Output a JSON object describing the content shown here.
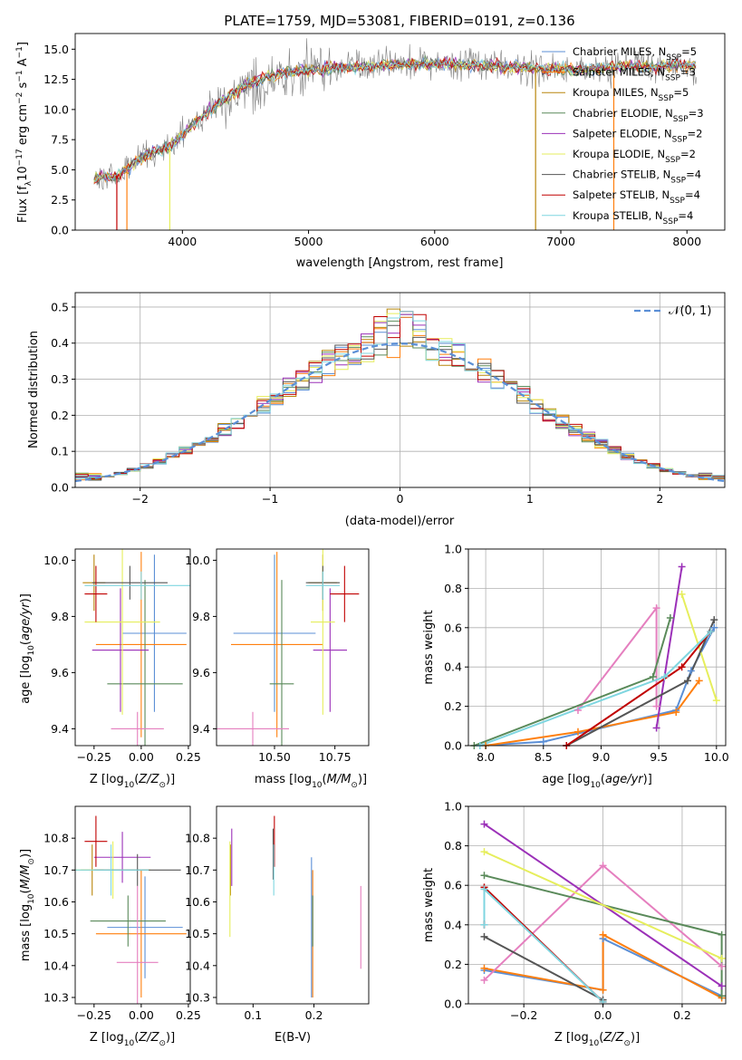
{
  "title": "PLATE=1759, MJD=53081, FIBERID=0191, z=0.136",
  "series_colors": [
    "#5b8fd6",
    "#ff7f0e",
    "#b8860b",
    "#5a8a5a",
    "#9b30b8",
    "#e6ee5c",
    "#555555",
    "#c00000",
    "#7fd6e0"
  ],
  "legend": [
    "Chabrier MILES, N_SSP=5",
    "Salpeter MILES, N_SSP=3",
    "Kroupa MILES, N_SSP=5",
    "Chabrier ELODIE, N_SSP=3",
    "Salpeter ELODIE, N_SSP=2",
    "Kroupa ELODIE, N_SSP=2",
    "Chabrier STELIB, N_SSP=4",
    "Salpeter STELIB, N_SSP=4",
    "Kroupa STELIB, N_SSP=4"
  ],
  "chart_data": [
    {
      "id": "spectrum",
      "type": "line",
      "xlabel": "wavelength [Angstrom, rest frame]",
      "ylabel": "Flux [f_λ 10^-17 erg cm^-2 s^-1 A^-1]",
      "xlim": [
        3150,
        8300
      ],
      "ylim": [
        0,
        16.3
      ],
      "xticks": [
        4000,
        5000,
        6000,
        7000,
        8000
      ],
      "yticks": [
        "0.0",
        "2.5",
        "5.0",
        "7.5",
        "10.0",
        "12.5",
        "15.0"
      ],
      "grid": false,
      "legend_loc": "right",
      "model_x": [
        3300,
        3500,
        3700,
        3900,
        4000,
        4100,
        4300,
        4500,
        4700,
        4900,
        5100,
        5300,
        5500,
        5700,
        5900,
        6100,
        6300,
        6500,
        6700,
        6900,
        7100,
        7300,
        7500,
        7700,
        7900,
        8050
      ],
      "model_y": [
        4.3,
        4.6,
        6.2,
        6.9,
        7.9,
        8.9,
        10.6,
        12.0,
        12.8,
        13.2,
        13.3,
        13.5,
        13.6,
        13.7,
        13.8,
        13.8,
        13.7,
        13.6,
        13.5,
        13.4,
        13.3,
        13.4,
        13.6,
        13.5,
        13.7,
        13.6
      ]
    },
    {
      "id": "residuals",
      "type": "histogram",
      "xlabel": "(data-model)/error",
      "ylabel": "Normed distribution",
      "xlim": [
        -2.5,
        2.5
      ],
      "ylim": [
        0,
        0.54
      ],
      "xticks": [
        "−2",
        "−1",
        "0",
        "1",
        "2"
      ],
      "yticks": [
        "0.0",
        "0.1",
        "0.2",
        "0.3",
        "0.4",
        "0.5"
      ],
      "grid": true,
      "legend_loc": "top-right",
      "gauss_label": "𝒩(0, 1)"
    },
    {
      "id": "age_vs_Z",
      "type": "scatter-errorbars",
      "xlabel": "Z [log10(Z/Z⊙)]",
      "ylabel": "age  [log10(age/yr)]",
      "xlim": [
        -0.35,
        0.26
      ],
      "ylim": [
        9.34,
        10.04
      ],
      "xticks": [
        "−0.25",
        "0.00",
        "0.25"
      ],
      "yticks": [
        "9.4",
        "9.6",
        "9.8",
        "10.0"
      ],
      "points": [
        {
          "x": 0.07,
          "y": 9.74,
          "xerr": 0.17,
          "yerr": 0.28
        },
        {
          "x": 0.0,
          "y": 9.7,
          "xerr": 0.24,
          "yerr": 0.33
        },
        {
          "x": -0.25,
          "y": 9.92,
          "xerr": 0.06,
          "yerr": 0.1
        },
        {
          "x": 0.02,
          "y": 9.56,
          "xerr": 0.2,
          "yerr": 0.37
        },
        {
          "x": -0.11,
          "y": 9.68,
          "xerr": 0.15,
          "yerr": 0.22
        },
        {
          "x": -0.1,
          "y": 9.78,
          "xerr": 0.2,
          "yerr": 0.33
        },
        {
          "x": -0.06,
          "y": 9.92,
          "xerr": 0.2,
          "yerr": 0.06
        },
        {
          "x": -0.24,
          "y": 9.88,
          "xerr": 0.06,
          "yerr": 0.1
        },
        {
          "x": 0.0,
          "y": 9.91,
          "xerr": 0.3,
          "yerr": 0.05
        },
        {
          "x": -0.02,
          "y": 9.4,
          "xerr": 0.14,
          "yerr": 0.06
        }
      ]
    },
    {
      "id": "age_vs_mass",
      "type": "scatter-errorbars",
      "xlabel": "mass [log10(M/M⊙)]",
      "ylabel": "",
      "xlim": [
        10.26,
        10.89
      ],
      "ylim": [
        9.34,
        10.04
      ],
      "xticks": [
        "10.50",
        "10.75"
      ],
      "yticks": [
        "9.4",
        "9.6",
        "9.8",
        "10.0"
      ],
      "points": [
        {
          "x": 10.5,
          "y": 9.74,
          "xerr": 0.17,
          "yerr": 0.28
        },
        {
          "x": 10.51,
          "y": 9.7,
          "xerr": 0.19,
          "yerr": 0.33
        },
        {
          "x": 10.7,
          "y": 9.92,
          "xerr": 0.06,
          "yerr": 0.1
        },
        {
          "x": 10.53,
          "y": 9.56,
          "xerr": 0.05,
          "yerr": 0.37
        },
        {
          "x": 10.73,
          "y": 9.68,
          "xerr": 0.07,
          "yerr": 0.22
        },
        {
          "x": 10.7,
          "y": 9.78,
          "xerr": 0.05,
          "yerr": 0.33
        },
        {
          "x": 10.7,
          "y": 9.92,
          "xerr": 0.07,
          "yerr": 0.06
        },
        {
          "x": 10.79,
          "y": 9.88,
          "xerr": 0.06,
          "yerr": 0.1
        },
        {
          "x": 10.7,
          "y": 9.91,
          "xerr": 0.07,
          "yerr": 0.05
        },
        {
          "x": 10.41,
          "y": 9.4,
          "xerr": 0.15,
          "yerr": 0.06
        }
      ]
    },
    {
      "id": "weight_vs_age",
      "type": "line",
      "xlabel": "age  [log10(age/yr)]",
      "ylabel": "mass weight",
      "xlim": [
        7.85,
        10.08
      ],
      "ylim": [
        0,
        1
      ],
      "xticks": [
        "8.0",
        "8.5",
        "9.0",
        "9.5",
        "10.0"
      ],
      "yticks": [
        "0.0",
        "0.2",
        "0.4",
        "0.6",
        "0.8",
        "1.0"
      ],
      "grid": true,
      "series": [
        {
          "x": [
            7.95,
            8.5,
            9.65,
            9.78,
            9.98
          ],
          "y": [
            0.0,
            0.02,
            0.18,
            0.38,
            0.6
          ]
        },
        {
          "x": [
            8.0,
            8.8,
            9.65,
            9.85
          ],
          "y": [
            0.0,
            0.07,
            0.17,
            0.33
          ]
        },
        {
          "x": [
            8.8,
            9.48,
            9.48
          ],
          "y": [
            0.18,
            0.7,
            0.2
          ]
        },
        {
          "x": [
            7.9,
            9.45,
            9.6
          ],
          "y": [
            0.0,
            0.35,
            0.65
          ]
        },
        {
          "x": [
            9.48,
            9.7
          ],
          "y": [
            0.09,
            0.91
          ]
        },
        {
          "x": [
            9.7,
            10.0
          ],
          "y": [
            0.77,
            0.23
          ]
        },
        {
          "x": [
            8.7,
            9.75,
            9.98
          ],
          "y": [
            0.0,
            0.33,
            0.64
          ]
        },
        {
          "x": [
            8.7,
            9.7,
            9.95
          ],
          "y": [
            0.0,
            0.4,
            0.58
          ]
        },
        {
          "x": [
            7.95,
            9.55,
            9.95
          ],
          "y": [
            0.0,
            0.35,
            0.58
          ]
        }
      ]
    },
    {
      "id": "mass_vs_Z",
      "type": "scatter-errorbars",
      "xlabel": "Z [log10(Z/Z⊙)]",
      "ylabel": "mass [log10(M/M⊙)]",
      "xlim": [
        -0.35,
        0.26
      ],
      "ylim": [
        10.28,
        10.9
      ],
      "xticks": [
        "−0.25",
        "0.00",
        "0.25"
      ],
      "yticks": [
        "10.3",
        "10.4",
        "10.5",
        "10.6",
        "10.7",
        "10.8"
      ],
      "points": [
        {
          "x": 0.02,
          "y": 10.52,
          "xerr": 0.2,
          "yerr": 0.16
        },
        {
          "x": 0.0,
          "y": 10.5,
          "xerr": 0.24,
          "yerr": 0.2
        },
        {
          "x": -0.26,
          "y": 10.7,
          "xerr": 0.06,
          "yerr": 0.08
        },
        {
          "x": -0.07,
          "y": 10.54,
          "xerr": 0.2,
          "yerr": 0.08
        },
        {
          "x": -0.1,
          "y": 10.74,
          "xerr": 0.15,
          "yerr": 0.08
        },
        {
          "x": -0.15,
          "y": 10.7,
          "xerr": 0.2,
          "yerr": 0.09
        },
        {
          "x": -0.02,
          "y": 10.7,
          "xerr": 0.23,
          "yerr": 0.05
        },
        {
          "x": -0.24,
          "y": 10.79,
          "xerr": 0.06,
          "yerr": 0.08
        },
        {
          "x": -0.16,
          "y": 10.7,
          "xerr": 0.2,
          "yerr": 0.08
        },
        {
          "x": -0.02,
          "y": 10.41,
          "xerr": 0.11,
          "yerr": 0.24
        }
      ]
    },
    {
      "id": "mass_vs_ebv",
      "type": "scatter-errorbars",
      "xlabel": "E(B-V)",
      "ylabel": "",
      "xlim": [
        0.04,
        0.29
      ],
      "ylim": [
        10.28,
        10.9
      ],
      "xticks": [
        "0.1",
        "0.2"
      ],
      "yticks": [
        "10.3",
        "10.4",
        "10.5",
        "10.6",
        "10.7",
        "10.8"
      ],
      "points": [
        {
          "x": 0.196,
          "y": 10.52,
          "yerr": 0.22
        },
        {
          "x": 0.198,
          "y": 10.5,
          "yerr": 0.2
        },
        {
          "x": 0.063,
          "y": 10.7,
          "yerr": 0.08
        },
        {
          "x": 0.198,
          "y": 10.54,
          "yerr": 0.08
        },
        {
          "x": 0.065,
          "y": 10.74,
          "yerr": 0.09
        },
        {
          "x": 0.062,
          "y": 10.64,
          "yerr": 0.15
        },
        {
          "x": 0.133,
          "y": 10.75,
          "yerr": 0.08
        },
        {
          "x": 0.135,
          "y": 10.79,
          "yerr": 0.08
        },
        {
          "x": 0.134,
          "y": 10.7,
          "yerr": 0.08
        },
        {
          "x": 0.277,
          "y": 10.52,
          "yerr": 0.13
        }
      ]
    },
    {
      "id": "weight_vs_Z",
      "type": "line",
      "xlabel": "Z [log10(Z/Z⊙)]",
      "ylabel": "mass weight",
      "xlim": [
        -0.34,
        0.31
      ],
      "ylim": [
        0,
        1
      ],
      "xticks": [
        "−0.2",
        "0.0",
        "0.2"
      ],
      "yticks": [
        "0.0",
        "0.2",
        "0.4",
        "0.6",
        "0.8",
        "1.0"
      ],
      "grid": true,
      "series": [
        {
          "x": [
            -0.3,
            0.0,
            0.0,
            0.3
          ],
          "y": [
            0.17,
            0.07,
            0.33,
            0.04
          ]
        },
        {
          "x": [
            -0.3,
            0.0,
            0.0,
            0.3
          ],
          "y": [
            0.18,
            0.07,
            0.35,
            0.03
          ]
        },
        {
          "x": [
            -0.3,
            0.0,
            0.3
          ],
          "y": [
            0.12,
            0.7,
            0.19
          ]
        },
        {
          "x": [
            -0.3,
            0.3,
            0.3
          ],
          "y": [
            0.65,
            0.35,
            0.04
          ]
        },
        {
          "x": [
            -0.3,
            0.3
          ],
          "y": [
            0.91,
            0.09
          ]
        },
        {
          "x": [
            -0.3,
            0.3
          ],
          "y": [
            0.77,
            0.23
          ]
        },
        {
          "x": [
            -0.3,
            0.0
          ],
          "y": [
            0.34,
            0.02
          ]
        },
        {
          "x": [
            -0.3,
            -0.3,
            0.0
          ],
          "y": [
            0.4,
            0.59,
            0.01
          ]
        },
        {
          "x": [
            -0.3,
            -0.3,
            0.0
          ],
          "y": [
            0.4,
            0.58,
            0.01
          ]
        }
      ]
    }
  ]
}
